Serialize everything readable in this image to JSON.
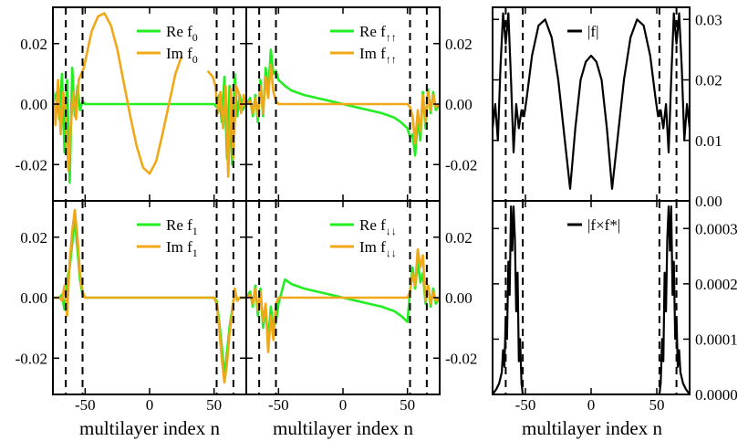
{
  "figure": {
    "xlabel": "multilayer index n"
  },
  "colors": {
    "re": "#22ee22",
    "im": "#f0a818",
    "mag": "#000000",
    "dash": "#000000",
    "axis": "#000000"
  },
  "chart_data": [
    {
      "id": "f0",
      "type": "line",
      "xlim": [
        -75,
        75
      ],
      "ylim": [
        -0.032,
        0.032
      ],
      "yticks": [
        -0.02,
        0.0,
        0.02
      ],
      "yticklabels": [
        "-0.02",
        "0.00",
        "0.02"
      ],
      "yaxis_side": "left",
      "xticks": [
        -50,
        0,
        50
      ],
      "xticklabels": [],
      "vlines": [
        -65,
        -52,
        52,
        65
      ],
      "legend": [
        {
          "main": "Re f",
          "sub": "0",
          "series": "re"
        },
        {
          "main": "Im f",
          "sub": "0",
          "series": "im"
        }
      ],
      "series": [
        {
          "key": "re",
          "name": "Re f0",
          "color": "#22ee22",
          "x": [
            -75,
            -72,
            -70,
            -68,
            -66,
            -64,
            -62,
            -60,
            -58,
            -56,
            -54,
            -52,
            -50,
            0,
            50,
            52,
            54,
            56,
            58,
            60,
            62,
            64,
            66,
            68,
            70,
            72,
            75
          ],
          "y": [
            0.0,
            0.004,
            -0.005,
            0.01,
            -0.016,
            0.008,
            -0.026,
            0.012,
            -0.004,
            0.006,
            -0.002,
            0.001,
            0.0,
            0.0,
            0.0,
            -0.001,
            0.003,
            -0.006,
            0.009,
            -0.018,
            0.006,
            -0.02,
            0.01,
            -0.004,
            0.003,
            -0.002,
            0.0
          ]
        },
        {
          "key": "im",
          "name": "Im f0",
          "color": "#f0a818",
          "x": [
            -75,
            -73,
            -71,
            -69,
            -67,
            -65,
            -63,
            -61,
            -59,
            -57,
            -55,
            -53,
            -51,
            -49,
            -45,
            -40,
            -35,
            -30,
            -25,
            -20,
            -15,
            -10,
            -5,
            0,
            5,
            10,
            15,
            20,
            25,
            30,
            35,
            40,
            45,
            49,
            51,
            53,
            55,
            57,
            59,
            61,
            63,
            65,
            67,
            69,
            71,
            73,
            75
          ],
          "y": [
            0.006,
            -0.007,
            0.008,
            -0.01,
            0.004,
            -0.003,
            -0.022,
            -0.006,
            0.004,
            -0.005,
            0.008,
            0.01,
            0.012,
            0.016,
            0.024,
            0.029,
            0.03,
            0.026,
            0.018,
            0.007,
            -0.004,
            -0.014,
            -0.021,
            -0.023,
            -0.019,
            -0.01,
            0.0,
            0.01,
            0.016,
            null,
            null,
            null,
            0.011,
            0.009,
            0.006,
            -0.003,
            0.004,
            -0.008,
            0.006,
            -0.024,
            0.005,
            -0.018,
            0.006,
            0.004,
            -0.003,
            0.003,
            -0.001
          ]
        }
      ]
    },
    {
      "id": "fupup",
      "type": "line",
      "xlim": [
        -75,
        75
      ],
      "ylim": [
        -0.032,
        0.032
      ],
      "yticks": [
        -0.02,
        0.0,
        0.02
      ],
      "yticklabels": [
        "-0.02",
        "0.00",
        "0.02"
      ],
      "yaxis_side": "right",
      "xticks": [
        -50,
        0,
        50
      ],
      "xticklabels": [],
      "vlines": [
        -65,
        -52,
        52,
        65
      ],
      "legend": [
        {
          "main": "Re f",
          "sub": "↑↑",
          "series": "re"
        },
        {
          "main": "Im f",
          "sub": "↑↑",
          "series": "im"
        }
      ],
      "series": [
        {
          "key": "re",
          "name": "Re f↑↑",
          "color": "#22ee22",
          "x": [
            -75,
            -72,
            -70,
            -68,
            -66,
            -64,
            -62,
            -60,
            -58,
            -56,
            -54,
            -52,
            -50,
            -45,
            -40,
            -30,
            -20,
            -10,
            0,
            10,
            20,
            30,
            40,
            45,
            50,
            52,
            54,
            56,
            58,
            60,
            62,
            64,
            66,
            68,
            70,
            72,
            75
          ],
          "y": [
            0.0,
            0.002,
            -0.004,
            0.003,
            -0.006,
            0.008,
            -0.004,
            0.012,
            0.004,
            0.018,
            0.01,
            0.011,
            0.008,
            0.006,
            0.0045,
            0.003,
            0.002,
            0.001,
            0.0,
            -0.001,
            -0.002,
            -0.003,
            -0.0045,
            -0.006,
            -0.008,
            -0.011,
            -0.01,
            -0.017,
            -0.005,
            -0.012,
            0.004,
            -0.008,
            0.005,
            -0.003,
            0.004,
            -0.002,
            0.0
          ]
        },
        {
          "key": "im",
          "name": "Im f↑↑",
          "color": "#f0a818",
          "x": [
            -75,
            -72,
            -70,
            -68,
            -66,
            -64,
            -62,
            -60,
            -58,
            -56,
            -54,
            -52,
            -50,
            50,
            52,
            54,
            56,
            58,
            60,
            62,
            64,
            66,
            68,
            70,
            72,
            75
          ],
          "y": [
            0.0,
            0.001,
            -0.003,
            0.002,
            -0.004,
            0.006,
            -0.003,
            0.009,
            0.002,
            0.013,
            0.004,
            0.001,
            0.0,
            0.0,
            -0.001,
            -0.004,
            -0.013,
            -0.002,
            -0.009,
            0.003,
            -0.006,
            0.004,
            -0.002,
            0.003,
            -0.001,
            0.0
          ]
        }
      ]
    },
    {
      "id": "f1",
      "type": "line",
      "xlim": [
        -75,
        75
      ],
      "ylim": [
        -0.032,
        0.032
      ],
      "yticks": [
        -0.02,
        0.0,
        0.02
      ],
      "yticklabels": [
        "-0.02",
        "0.00",
        "0.02"
      ],
      "yaxis_side": "left",
      "xticks": [
        -50,
        0,
        50
      ],
      "xticklabels": [
        "-50",
        "0",
        "50"
      ],
      "vlines": [
        -65,
        -52,
        52,
        65
      ],
      "legend": [
        {
          "main": "Re f",
          "sub": "1",
          "series": "re"
        },
        {
          "main": "Im f",
          "sub": "1",
          "series": "im"
        }
      ],
      "series": [
        {
          "key": "re",
          "name": "Re f1",
          "color": "#22ee22",
          "x": [
            -75,
            -70,
            -68,
            -66,
            -64,
            -62,
            -60,
            -58,
            -56,
            -54,
            -52,
            -50,
            50,
            52,
            54,
            56,
            58,
            60,
            62,
            64,
            66,
            68,
            70,
            75
          ],
          "y": [
            0.0,
            0.0,
            0.001,
            -0.004,
            0.006,
            0.01,
            0.018,
            0.026,
            0.016,
            0.006,
            0.001,
            0.0,
            0.0,
            -0.001,
            -0.008,
            -0.016,
            -0.026,
            -0.018,
            -0.01,
            -0.004,
            0.002,
            -0.001,
            0.0,
            0.0
          ]
        },
        {
          "key": "im",
          "name": "Im f1",
          "color": "#f0a818",
          "x": [
            -75,
            -70,
            -68,
            -66,
            -64,
            -62,
            -60,
            -58,
            -56,
            -54,
            -52,
            -50,
            50,
            52,
            54,
            56,
            58,
            60,
            62,
            64,
            66,
            68,
            70,
            75
          ],
          "y": [
            0.0,
            0.0,
            -0.001,
            0.004,
            -0.006,
            0.012,
            0.022,
            0.029,
            0.02,
            0.008,
            0.002,
            0.0,
            0.0,
            -0.002,
            -0.01,
            -0.02,
            -0.028,
            -0.022,
            -0.012,
            -0.005,
            0.003,
            -0.001,
            0.0,
            0.0
          ]
        }
      ]
    },
    {
      "id": "fdowndown",
      "type": "line",
      "xlim": [
        -75,
        75
      ],
      "ylim": [
        -0.032,
        0.032
      ],
      "yticks": [
        -0.02,
        0.0,
        0.02
      ],
      "yticklabels": [
        "-0.02",
        "0.00",
        "0.02"
      ],
      "yaxis_side": "right",
      "xticks": [
        -50,
        0,
        50
      ],
      "xticklabels": [
        "-50",
        "0",
        "50"
      ],
      "vlines": [
        -65,
        -52,
        52,
        65
      ],
      "legend": [
        {
          "main": "Re f",
          "sub": "↓↓",
          "series": "re"
        },
        {
          "main": "Im f",
          "sub": "↓↓",
          "series": "im"
        }
      ],
      "series": [
        {
          "key": "re",
          "name": "Re f↓↓",
          "color": "#22ee22",
          "x": [
            -75,
            -72,
            -70,
            -68,
            -66,
            -64,
            -62,
            -60,
            -58,
            -56,
            -54,
            -52,
            -50,
            -45,
            -40,
            -30,
            -20,
            -10,
            0,
            10,
            20,
            30,
            40,
            45,
            50,
            52,
            54,
            56,
            58,
            60,
            62,
            64,
            66,
            68,
            70,
            72,
            75
          ],
          "y": [
            0.0,
            0.002,
            -0.003,
            0.004,
            -0.006,
            0.003,
            -0.01,
            -0.004,
            -0.014,
            -0.003,
            -0.01,
            -0.008,
            -0.002,
            0.006,
            0.0045,
            0.003,
            0.002,
            0.001,
            0.0,
            -0.001,
            -0.002,
            -0.003,
            -0.0045,
            -0.006,
            -0.008,
            0.002,
            0.01,
            0.003,
            0.012,
            0.005,
            0.008,
            -0.002,
            0.004,
            -0.003,
            0.003,
            -0.002,
            0.0
          ]
        },
        {
          "key": "im",
          "name": "Im f↓↓",
          "color": "#f0a818",
          "x": [
            -75,
            -72,
            -70,
            -68,
            -66,
            -64,
            -62,
            -60,
            -58,
            -56,
            -54,
            -52,
            -50,
            50,
            52,
            54,
            56,
            58,
            60,
            62,
            64,
            66,
            68,
            70,
            72,
            75
          ],
          "y": [
            0.0,
            0.001,
            -0.002,
            0.003,
            -0.004,
            0.002,
            -0.008,
            -0.002,
            -0.018,
            -0.006,
            -0.014,
            -0.002,
            0.0,
            0.0,
            0.002,
            0.008,
            0.004,
            0.016,
            0.01,
            0.014,
            -0.001,
            0.004,
            -0.002,
            0.002,
            -0.001,
            0.0
          ]
        }
      ]
    },
    {
      "id": "absf",
      "type": "line",
      "xlim": [
        -75,
        75
      ],
      "ylim": [
        0,
        0.032
      ],
      "yticks": [
        0.0,
        0.01,
        0.02,
        0.03
      ],
      "yticklabels": [
        "0.00",
        "0.01",
        "0.02",
        "0.03"
      ],
      "yaxis_side": "right",
      "xticks": [
        -50,
        0,
        50
      ],
      "xticklabels": [],
      "vlines": [
        -65,
        -52,
        52,
        65
      ],
      "legend": [
        {
          "main": "|f|",
          "sub": "",
          "series": "mag"
        }
      ],
      "series": [
        {
          "key": "mag",
          "name": "|f|",
          "color": "#000000",
          "x": [
            -75,
            -73,
            -71,
            -69,
            -67,
            -65,
            -63,
            -61,
            -59,
            -57,
            -55,
            -53,
            -51,
            -49,
            -45,
            -40,
            -35,
            -30,
            -25,
            -20,
            -16,
            -12,
            -8,
            -4,
            0,
            4,
            8,
            12,
            16,
            20,
            25,
            30,
            35,
            40,
            45,
            49,
            51,
            53,
            55,
            57,
            59,
            61,
            63,
            65,
            67,
            69,
            71,
            73,
            75
          ],
          "y": [
            0.012,
            0.016,
            0.01,
            0.022,
            0.031,
            0.026,
            0.031,
            0.02,
            0.008,
            0.016,
            0.012,
            0.015,
            0.014,
            0.017,
            0.024,
            0.029,
            0.03,
            0.027,
            0.02,
            0.01,
            0.002,
            0.012,
            0.02,
            0.023,
            0.024,
            0.023,
            0.02,
            0.012,
            0.002,
            0.01,
            0.02,
            0.027,
            0.03,
            0.029,
            0.024,
            0.017,
            0.014,
            0.015,
            0.012,
            0.016,
            0.008,
            0.02,
            0.031,
            0.026,
            0.031,
            0.022,
            0.01,
            0.016,
            0.012
          ]
        }
      ]
    },
    {
      "id": "fxfstar",
      "type": "line",
      "xlim": [
        -75,
        75
      ],
      "ylim": [
        0,
        0.00035
      ],
      "yticks": [
        0.0,
        0.0001,
        0.0002,
        0.0003
      ],
      "yticklabels": [
        "0.0000",
        "0.0001",
        "0.0002",
        "0.0003"
      ],
      "yaxis_side": "right",
      "xticks": [
        -50,
        0,
        50
      ],
      "xticklabels": [
        "-50",
        "0",
        "50"
      ],
      "vlines": [
        -65,
        -52,
        52,
        65
      ],
      "legend": [
        {
          "main": "|f×f*|",
          "sub": "",
          "series": "mag"
        }
      ],
      "series": [
        {
          "key": "mag",
          "name": "|f×f*|",
          "color": "#000000",
          "x": [
            -75,
            -72,
            -70,
            -68,
            -67,
            -66,
            -65,
            -64,
            -63,
            -62,
            -61,
            -60,
            -59,
            -58,
            -57,
            -56,
            -55,
            -54,
            -53,
            -52,
            -50,
            50,
            52,
            53,
            54,
            55,
            56,
            57,
            58,
            59,
            60,
            61,
            62,
            63,
            64,
            65,
            66,
            67,
            68,
            70,
            72,
            75
          ],
          "y": [
            0.0,
            1e-05,
            2e-05,
            4e-05,
            8e-05,
            5e-05,
            0.00014,
            0.0001,
            0.00024,
            0.00018,
            0.00034,
            0.00026,
            0.00034,
            0.00028,
            0.00015,
            0.00022,
            6e-05,
            0.0001,
            2e-05,
            0.0,
            0.0,
            0.0,
            0.0,
            2e-05,
            0.0001,
            6e-05,
            0.00022,
            0.00015,
            0.00028,
            0.00034,
            0.00026,
            0.00034,
            0.00018,
            0.00024,
            0.0001,
            0.00014,
            5e-05,
            8e-05,
            4e-05,
            2e-05,
            1e-05,
            0.0
          ]
        }
      ]
    }
  ]
}
